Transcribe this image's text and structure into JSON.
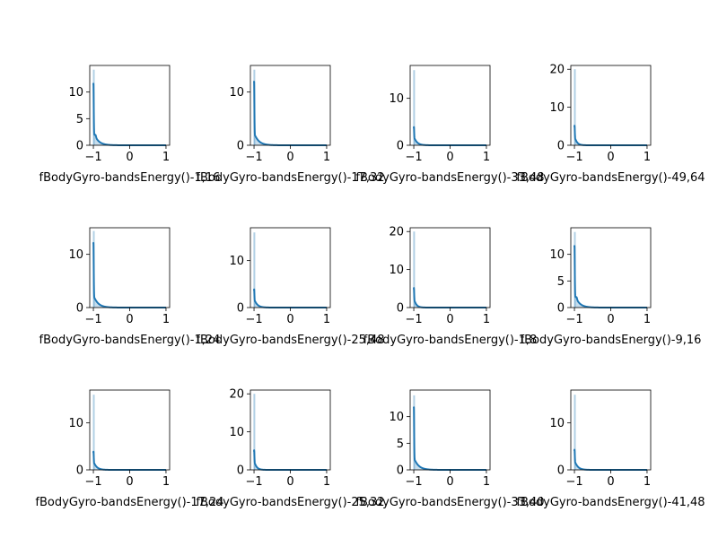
{
  "chart_data": [
    {
      "type": "area",
      "xlabel": "fBodyGyro-bandsEnergy()-1,16",
      "xlim": [
        -1.1,
        1.1
      ],
      "xticks": [
        "-1",
        "0",
        "1"
      ],
      "ylim": [
        0,
        15
      ],
      "yticks": [
        "0",
        "5",
        "10"
      ],
      "peak": 14.0,
      "bar_peak": 14.2,
      "shoulder": 2.6,
      "decay": 0.12,
      "has_bump": true
    },
    {
      "type": "area",
      "xlabel": "fBodyGyro-bandsEnergy()-17,32",
      "xlim": [
        -1.1,
        1.1
      ],
      "xticks": [
        "-1",
        "0",
        "1"
      ],
      "ylim": [
        0,
        15
      ],
      "yticks": [
        "0",
        "10"
      ],
      "peak": 14.2,
      "bar_peak": 14.2,
      "shoulder": 2.4,
      "decay": 0.12,
      "has_bump": false
    },
    {
      "type": "area",
      "xlabel": "fBodyGyro-bandsEnergy()-33,48",
      "xlim": [
        -1.1,
        1.1
      ],
      "xticks": [
        "-1",
        "0",
        "1"
      ],
      "ylim": [
        0,
        17
      ],
      "yticks": [
        "0",
        "10"
      ],
      "peak": 3.6,
      "bar_peak": 16.0,
      "shoulder": 0.0,
      "decay": 0.08,
      "has_bump": false
    },
    {
      "type": "area",
      "xlabel": "fBodyGyro-bandsEnergy()-49,64",
      "xlim": [
        -1.1,
        1.1
      ],
      "xticks": [
        "-1",
        "0",
        "1"
      ],
      "ylim": [
        0,
        21
      ],
      "yticks": [
        "0",
        "10",
        "20"
      ],
      "peak": 4.8,
      "bar_peak": 20.0,
      "shoulder": 0.0,
      "decay": 0.06,
      "has_bump": false
    },
    {
      "type": "area",
      "xlabel": "fBodyGyro-bandsEnergy()-1,24",
      "xlim": [
        -1.1,
        1.1
      ],
      "xticks": [
        "-1",
        "0",
        "1"
      ],
      "ylim": [
        0,
        15
      ],
      "yticks": [
        "0",
        "10"
      ],
      "peak": 14.4,
      "bar_peak": 14.4,
      "shoulder": 2.4,
      "decay": 0.12,
      "has_bump": false
    },
    {
      "type": "area",
      "xlabel": "fBodyGyro-bandsEnergy()-25,48",
      "xlim": [
        -1.1,
        1.1
      ],
      "xticks": [
        "-1",
        "0",
        "1"
      ],
      "ylim": [
        0,
        17
      ],
      "yticks": [
        "0",
        "10"
      ],
      "peak": 3.6,
      "bar_peak": 16.0,
      "shoulder": 0.0,
      "decay": 0.08,
      "has_bump": false
    },
    {
      "type": "area",
      "xlabel": "fBodyGyro-bandsEnergy()-1,8",
      "xlim": [
        -1.1,
        1.1
      ],
      "xticks": [
        "-1",
        "0",
        "1"
      ],
      "ylim": [
        0,
        21
      ],
      "yticks": [
        "0",
        "10",
        "20"
      ],
      "peak": 4.8,
      "bar_peak": 20.0,
      "shoulder": 0.0,
      "decay": 0.06,
      "has_bump": false
    },
    {
      "type": "area",
      "xlabel": "fBodyGyro-bandsEnergy()-9,16",
      "xlim": [
        -1.1,
        1.1
      ],
      "xticks": [
        "-1",
        "0",
        "1"
      ],
      "ylim": [
        0,
        15
      ],
      "yticks": [
        "0",
        "5",
        "10"
      ],
      "peak": 14.0,
      "bar_peak": 14.2,
      "shoulder": 2.6,
      "decay": 0.12,
      "has_bump": true
    },
    {
      "type": "area",
      "xlabel": "fBodyGyro-bandsEnergy()-17,24",
      "xlim": [
        -1.1,
        1.1
      ],
      "xticks": [
        "-1",
        "0",
        "1"
      ],
      "ylim": [
        0,
        17
      ],
      "yticks": [
        "0",
        "10"
      ],
      "peak": 3.6,
      "bar_peak": 16.0,
      "shoulder": 0.0,
      "decay": 0.08,
      "has_bump": false
    },
    {
      "type": "area",
      "xlabel": "fBodyGyro-bandsEnergy()-25,32",
      "xlim": [
        -1.1,
        1.1
      ],
      "xticks": [
        "-1",
        "0",
        "1"
      ],
      "ylim": [
        0,
        21
      ],
      "yticks": [
        "0",
        "10",
        "20"
      ],
      "peak": 4.8,
      "bar_peak": 20.0,
      "shoulder": 0.0,
      "decay": 0.06,
      "has_bump": false
    },
    {
      "type": "area",
      "xlabel": "fBodyGyro-bandsEnergy()-33,40",
      "xlim": [
        -1.1,
        1.1
      ],
      "xticks": [
        "-1",
        "0",
        "1"
      ],
      "ylim": [
        0,
        15
      ],
      "yticks": [
        "0",
        "5",
        "10"
      ],
      "peak": 14.0,
      "bar_peak": 14.0,
      "shoulder": 2.4,
      "decay": 0.12,
      "has_bump": false
    },
    {
      "type": "area",
      "xlabel": "fBodyGyro-bandsEnergy()-41,48",
      "xlim": [
        -1.1,
        1.1
      ],
      "xticks": [
        "-1",
        "0",
        "1"
      ],
      "ylim": [
        0,
        17
      ],
      "yticks": [
        "0",
        "10"
      ],
      "peak": 4.0,
      "bar_peak": 16.0,
      "shoulder": 0.0,
      "decay": 0.08,
      "has_bump": false
    }
  ],
  "colors": {
    "line": "#1f77b4",
    "fill": "#1f77b4",
    "axis": "#000000",
    "text": "#000000",
    "background": "#ffffff"
  }
}
